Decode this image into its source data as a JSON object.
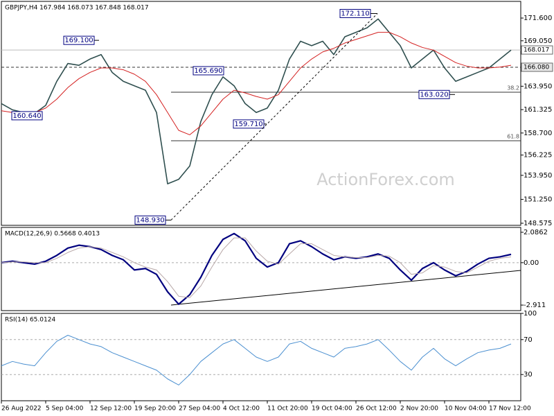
{
  "chart_data": [
    {
      "type": "line",
      "title": "GBPJPY,H4  167.984 168.073 167.848 168.017",
      "watermark": "ActionForex.com",
      "ylim": [
        148.34,
        173.47
      ],
      "yticks": [
        {
          "value": 171.6,
          "label": "171.600"
        },
        {
          "value": 169.05,
          "label": "169.050"
        },
        {
          "value": 163.95,
          "label": "163.950"
        },
        161.325,
        {
          "value": 158.7,
          "label": "158.700"
        },
        156.225,
        {
          "value": 153.95,
          "label": "153.950"
        },
        {
          "value": 151.25,
          "label": "151.250"
        },
        148.575
      ],
      "price_markers": [
        {
          "value": 168.017,
          "label": "168.017"
        },
        {
          "value": 166.08,
          "label": "166.080"
        }
      ],
      "annotations": [
        {
          "value": 169.1,
          "label": "169.100"
        },
        {
          "value": 160.64,
          "label": "160.640"
        },
        {
          "value": 165.69,
          "label": "165.690"
        },
        {
          "value": 148.93,
          "label": "148.930"
        },
        {
          "value": 159.71,
          "label": "159.710"
        },
        {
          "value": 172.11,
          "label": "172.110"
        },
        {
          "value": 163.02,
          "label": "163.020"
        }
      ],
      "fib_levels": [
        {
          "value": 163.28,
          "label": "38.2"
        },
        {
          "value": 157.83,
          "label": "61.8"
        }
      ],
      "series": [
        {
          "color": "#2f4f4f",
          "values": [
            162.0,
            161.3,
            161.0,
            160.9,
            161.8,
            164.5,
            166.5,
            166.3,
            167.0,
            167.5,
            165.5,
            164.5,
            164.0,
            163.5,
            161.0,
            153.0,
            153.5,
            155.0,
            160.0,
            163.0,
            165.0,
            164.0,
            162.0,
            161.0,
            161.5,
            163.5,
            167.0,
            169.0,
            168.5,
            169.0,
            167.5,
            169.5,
            170.0,
            170.5,
            171.5,
            170.0,
            168.5,
            166.0,
            167.0,
            168.0,
            166.0,
            164.5,
            165.0,
            165.5,
            166.0,
            167.0,
            168.0
          ]
        },
        {
          "color": "#d42020",
          "values": [
            161.2,
            161.0,
            160.9,
            161.0,
            161.5,
            162.5,
            163.8,
            164.8,
            165.5,
            166.0,
            166.0,
            165.8,
            165.3,
            164.5,
            163.0,
            161.0,
            159.0,
            158.5,
            159.5,
            161.0,
            162.5,
            163.5,
            163.2,
            162.8,
            162.5,
            163.0,
            164.5,
            166.0,
            167.0,
            167.8,
            168.2,
            168.8,
            169.2,
            169.6,
            170.0,
            170.0,
            169.5,
            168.8,
            168.3,
            168.0,
            167.3,
            166.6,
            166.2,
            166.0,
            166.0,
            166.1,
            166.3
          ]
        }
      ]
    },
    {
      "type": "line",
      "title": "MACD(12,26,9) 0.5668 0.4013",
      "ylim": [
        -3.29,
        2.42
      ],
      "grid": "zero",
      "yticks": [
        2.0862,
        {
          "value": 0,
          "label": "0.00"
        },
        -2.911
      ],
      "series": [
        {
          "color": "#00007f",
          "values": [
            0.0,
            0.1,
            0.0,
            -0.1,
            0.1,
            0.5,
            1.0,
            1.2,
            1.1,
            0.9,
            0.5,
            0.2,
            -0.5,
            -0.4,
            -0.8,
            -2.0,
            -2.85,
            -2.2,
            -1.0,
            0.5,
            1.6,
            2.0,
            1.5,
            0.3,
            -0.3,
            0.0,
            1.3,
            1.5,
            1.1,
            0.6,
            0.2,
            0.4,
            0.3,
            0.4,
            0.6,
            0.3,
            -0.5,
            -1.2,
            -0.4,
            0.0,
            -0.5,
            -0.9,
            -0.6,
            -0.1,
            0.3,
            0.4,
            0.57
          ]
        },
        {
          "color": "#b8a8a8",
          "values": [
            0.0,
            0.05,
            0.05,
            0.0,
            0.0,
            0.3,
            0.7,
            1.0,
            1.1,
            1.0,
            0.7,
            0.4,
            0.0,
            -0.3,
            -0.5,
            -1.3,
            -2.3,
            -2.4,
            -1.6,
            -0.3,
            0.9,
            1.7,
            1.7,
            0.8,
            0.1,
            -0.1,
            0.6,
            1.3,
            1.3,
            0.9,
            0.5,
            0.4,
            0.35,
            0.35,
            0.5,
            0.45,
            0.0,
            -0.8,
            -0.7,
            -0.2,
            -0.3,
            -0.6,
            -0.7,
            -0.3,
            0.1,
            0.3,
            0.4
          ]
        }
      ]
    },
    {
      "type": "line",
      "title": "RSI(14) 65.0124",
      "ylim": [
        0,
        100
      ],
      "grid": "inner",
      "yticks": [
        100,
        70,
        30
      ],
      "categories": [
        "26 Aug 2022",
        null,
        null,
        null,
        "5 Sep 04:00",
        null,
        null,
        null,
        "12 Sep 12:00",
        null,
        null,
        null,
        "19 Sep 20:00",
        null,
        null,
        null,
        "27 Sep 04:00",
        null,
        null,
        null,
        "4 Oct 12:00",
        null,
        null,
        null,
        "11 Oct 20:00",
        null,
        null,
        null,
        "19 Oct 04:00",
        null,
        null,
        null,
        "26 Oct 12:00",
        null,
        null,
        null,
        "2 Nov 20:00",
        null,
        null,
        null,
        "10 Nov 04:00",
        null,
        null,
        null,
        "17 Nov 12:00",
        null,
        null
      ],
      "series": [
        {
          "color": "#4a8fd0",
          "values": [
            40,
            45,
            42,
            40,
            55,
            68,
            75,
            70,
            65,
            62,
            55,
            50,
            45,
            40,
            35,
            25,
            18,
            30,
            45,
            55,
            65,
            70,
            60,
            50,
            45,
            50,
            65,
            68,
            60,
            55,
            50,
            60,
            62,
            65,
            70,
            58,
            45,
            35,
            50,
            60,
            48,
            40,
            48,
            55,
            58,
            60,
            65
          ]
        }
      ]
    }
  ]
}
